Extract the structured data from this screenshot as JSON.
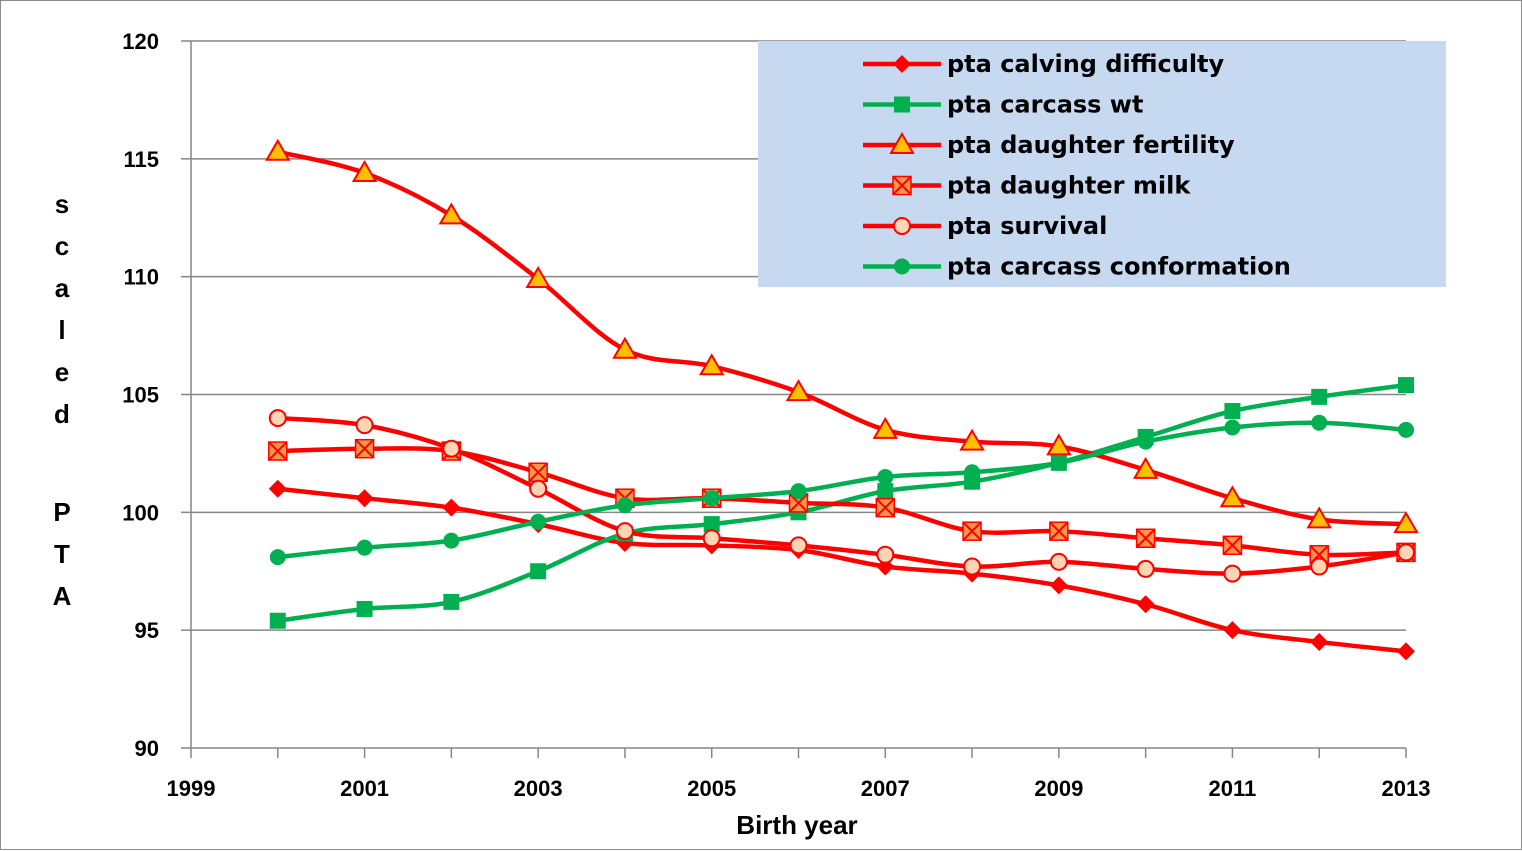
{
  "chart_data": {
    "type": "line",
    "xlabel": "Birth year",
    "ylabel": "scaled PTA",
    "xlim": [
      1999,
      2013
    ],
    "ylim": [
      90,
      120
    ],
    "x_ticks": [
      "1999",
      "2001",
      "2003",
      "2005",
      "2007",
      "2009",
      "2011",
      "2013"
    ],
    "y_ticks": [
      "90",
      "95",
      "100",
      "105",
      "110",
      "115",
      "120"
    ],
    "grid": "horizontal",
    "legend_position": "top-right",
    "legend_background": "#c6d9f1",
    "x": [
      2000,
      2001,
      2002,
      2003,
      2004,
      2005,
      2006,
      2007,
      2008,
      2009,
      2010,
      2011,
      2012,
      2013
    ],
    "series": [
      {
        "name": "pta calving difficulty",
        "color": "#ff0000",
        "marker": "diamond",
        "values": [
          101.0,
          100.6,
          100.2,
          99.5,
          98.7,
          98.6,
          98.4,
          97.7,
          97.4,
          96.9,
          96.1,
          95.0,
          94.5,
          94.1
        ]
      },
      {
        "name": "pta carcass wt",
        "color": "#00b050",
        "marker": "square",
        "values": [
          95.4,
          95.9,
          96.2,
          97.5,
          99.1,
          99.5,
          100.0,
          100.9,
          101.3,
          102.1,
          103.2,
          104.3,
          104.9,
          105.4
        ]
      },
      {
        "name": "pta daughter fertility",
        "color": "#ff0000",
        "marker": "triangle",
        "values": [
          115.3,
          114.4,
          112.6,
          109.9,
          106.9,
          106.2,
          105.1,
          103.5,
          103.0,
          102.8,
          101.8,
          100.6,
          99.7,
          99.5
        ]
      },
      {
        "name": "pta daughter milk",
        "color": "#ff0000",
        "marker": "xsquare",
        "values": [
          102.6,
          102.7,
          102.6,
          101.7,
          100.6,
          100.6,
          100.4,
          100.2,
          99.2,
          99.2,
          98.9,
          98.6,
          98.2,
          98.3
        ]
      },
      {
        "name": "pta survival",
        "color": "#ff0000",
        "marker": "circle-open",
        "values": [
          104.0,
          103.7,
          102.7,
          101.0,
          99.2,
          98.9,
          98.6,
          98.2,
          97.7,
          97.9,
          97.6,
          97.4,
          97.7,
          98.3
        ]
      },
      {
        "name": "pta carcass conformation",
        "color": "#00b050",
        "marker": "circle",
        "values": [
          98.1,
          98.5,
          98.8,
          99.6,
          100.3,
          100.6,
          100.9,
          101.5,
          101.7,
          102.1,
          103.0,
          103.6,
          103.8,
          103.5
        ]
      }
    ]
  }
}
